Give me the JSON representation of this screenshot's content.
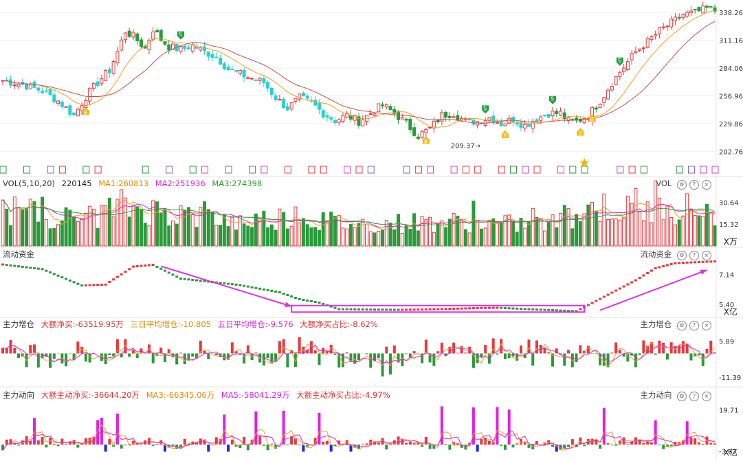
{
  "colors": {
    "up": "#e8383d",
    "down": "#2a9a3a",
    "ma_orange": "#f0a020",
    "ma_magenta": "#e020e0",
    "ma_green": "#2aa02a",
    "highlight": "#e030e0",
    "cyan": "#2ad0d0",
    "blue": "#1a2ad8"
  },
  "price_panel": {
    "y_ticks": [
      "338.26",
      "311.16",
      "284.06",
      "256.96",
      "229.86",
      "202.76"
    ],
    "low_label": "209.37",
    "signal_labels": {
      "buy": "B",
      "sell": "S"
    }
  },
  "vol_panel": {
    "title": "VOL(5,10,20)",
    "value": "220145",
    "ma1": "MA1:260813",
    "ma2": "MA2:251936",
    "ma3": "MA3:274398",
    "right_label": "VOL",
    "y_ticks": [
      "30.64",
      "15.32"
    ],
    "unit": "X万"
  },
  "flow_panel": {
    "title": "流动资金",
    "right_label": "流动资金",
    "y_ticks": [
      "7.14",
      "5.40"
    ],
    "unit": "X亿"
  },
  "inc_panel": {
    "title": "主力增仓",
    "net": "大额净买:-63519.95万",
    "avg3": "三日平均增仓:-10.805",
    "avg5": "五日平均增仓:-9.576",
    "ratio": "大额净买占比:-8.62%",
    "right_label": "主力增仓",
    "y_ticks": [
      "5.89",
      "-11.39"
    ]
  },
  "dir_panel": {
    "title": "主力动向",
    "net": "大额主动净买:-36644.20万",
    "ma3": "MA3:-66345.06万",
    "ma5": "MA5:-58041.29万",
    "ratio": "大额主动净买占比:-4.97%",
    "right_label": "主力动向",
    "y_ticks": [
      "19.71",
      "-3.63"
    ],
    "unit": "X亿"
  },
  "chart_data": {
    "type": "candlestick",
    "price_ylim": [
      195,
      345
    ],
    "close_path": [
      [
        0,
        272
      ],
      [
        5,
        268
      ],
      [
        10,
        262
      ],
      [
        14,
        252
      ],
      [
        18,
        238
      ],
      [
        21,
        256
      ],
      [
        24,
        270
      ],
      [
        27,
        282
      ],
      [
        29,
        300
      ],
      [
        31,
        320
      ],
      [
        33,
        315
      ],
      [
        36,
        303
      ],
      [
        38,
        322
      ],
      [
        40,
        312
      ],
      [
        42,
        305
      ],
      [
        45,
        302
      ],
      [
        48,
        306
      ],
      [
        51,
        300
      ],
      [
        54,
        295
      ],
      [
        57,
        283
      ],
      [
        60,
        278
      ],
      [
        63,
        274
      ],
      [
        66,
        270
      ],
      [
        69,
        255
      ],
      [
        72,
        245
      ],
      [
        75,
        255
      ],
      [
        78,
        250
      ],
      [
        81,
        240
      ],
      [
        84,
        233
      ],
      [
        87,
        238
      ],
      [
        90,
        232
      ],
      [
        93,
        240
      ],
      [
        96,
        248
      ],
      [
        99,
        240
      ],
      [
        102,
        230
      ],
      [
        105,
        218
      ],
      [
        108,
        225
      ],
      [
        111,
        238
      ],
      [
        114,
        240
      ],
      [
        117,
        232
      ],
      [
        120,
        232
      ],
      [
        123,
        236
      ],
      [
        126,
        230
      ],
      [
        129,
        234
      ],
      [
        132,
        228
      ],
      [
        135,
        235
      ],
      [
        138,
        240
      ],
      [
        141,
        240
      ],
      [
        143,
        232
      ],
      [
        145,
        232
      ],
      [
        148,
        238
      ],
      [
        151,
        252
      ],
      [
        154,
        270
      ],
      [
        157,
        285
      ],
      [
        160,
        300
      ],
      [
        163,
        310
      ],
      [
        166,
        320
      ],
      [
        169,
        328
      ],
      [
        172,
        336
      ],
      [
        175,
        338
      ],
      [
        178,
        342
      ],
      [
        180,
        340
      ]
    ],
    "volume_ylim": [
      0,
      40
    ],
    "volume_profile": [
      [
        0,
        26
      ],
      [
        10,
        22
      ],
      [
        20,
        18
      ],
      [
        30,
        28
      ],
      [
        40,
        24
      ],
      [
        50,
        20
      ],
      [
        60,
        17
      ],
      [
        70,
        20
      ],
      [
        80,
        18
      ],
      [
        90,
        15
      ],
      [
        100,
        16
      ],
      [
        110,
        17
      ],
      [
        120,
        16
      ],
      [
        130,
        15
      ],
      [
        140,
        16
      ],
      [
        145,
        22
      ],
      [
        150,
        28
      ],
      [
        160,
        24
      ],
      [
        170,
        27
      ],
      [
        180,
        25
      ]
    ],
    "flow_ylim": [
      4.8,
      8.0
    ],
    "flow_path": [
      [
        0,
        7.72
      ],
      [
        10,
        7.45
      ],
      [
        20,
        6.5
      ],
      [
        26,
        6.55
      ],
      [
        33,
        7.6
      ],
      [
        38,
        7.7
      ],
      [
        45,
        6.9
      ],
      [
        60,
        6.52
      ],
      [
        70,
        6.1
      ],
      [
        75,
        5.7
      ],
      [
        80,
        5.5
      ],
      [
        85,
        5.12
      ],
      [
        100,
        5.08
      ],
      [
        110,
        5.12
      ],
      [
        120,
        5.18
      ],
      [
        125,
        5.2
      ],
      [
        135,
        5.1
      ],
      [
        145,
        5.0
      ],
      [
        155,
        6.2
      ],
      [
        160,
        6.8
      ],
      [
        165,
        7.5
      ],
      [
        170,
        7.8
      ],
      [
        180,
        7.9
      ]
    ],
    "highlight_box": {
      "x_range": [
        73,
        147
      ],
      "y_range": [
        4.95,
        5.33
      ]
    },
    "inc_ylim": [
      -15,
      12
    ],
    "dir_ylim": [
      -5,
      25
    ]
  }
}
